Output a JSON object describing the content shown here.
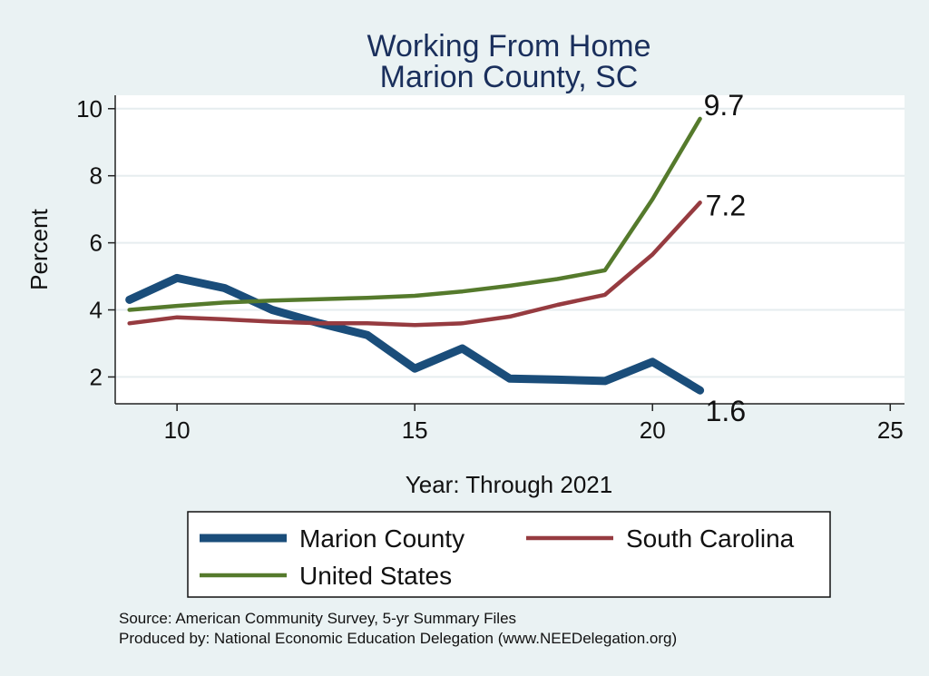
{
  "chart_data": {
    "type": "line",
    "title": [
      "Working From Home",
      "Marion County, SC"
    ],
    "xlabel": "Year: Through 2021",
    "ylabel": "Percent",
    "xlim": [
      8.7,
      25.3
    ],
    "ylim": [
      1.2,
      10.4
    ],
    "xticks": [
      10,
      15,
      20,
      25
    ],
    "yticks": [
      2,
      4,
      6,
      8,
      10
    ],
    "grid": true,
    "legend_position": "bottom",
    "series": [
      {
        "name": "Marion County",
        "color": "#1a4d7a",
        "x": [
          9,
          10,
          11,
          12,
          13,
          14,
          15,
          16,
          17,
          18,
          19,
          20,
          21
        ],
        "values": [
          4.3,
          4.95,
          4.65,
          4.0,
          3.6,
          3.25,
          2.25,
          2.85,
          1.95,
          1.92,
          1.88,
          2.45,
          1.6
        ],
        "end_label": "1.6"
      },
      {
        "name": "South Carolina",
        "color": "#963b40",
        "x": [
          9,
          10,
          11,
          12,
          13,
          14,
          15,
          16,
          17,
          18,
          19,
          20,
          21
        ],
        "values": [
          3.6,
          3.78,
          3.72,
          3.65,
          3.6,
          3.6,
          3.55,
          3.6,
          3.8,
          4.15,
          4.45,
          5.65,
          7.2
        ],
        "end_label": "7.2"
      },
      {
        "name": "United States",
        "color": "#557a2c",
        "x": [
          9,
          10,
          11,
          12,
          13,
          14,
          15,
          16,
          17,
          18,
          19,
          20,
          21
        ],
        "values": [
          4.0,
          4.12,
          4.22,
          4.28,
          4.32,
          4.36,
          4.42,
          4.55,
          4.72,
          4.92,
          5.18,
          7.3,
          9.7
        ],
        "end_label": "9.7"
      }
    ],
    "notes": [
      "Source: American Community Survey, 5-yr Summary Files",
      "Produced by: National Economic Education Delegation (www.NEEDelegation.org)"
    ]
  }
}
